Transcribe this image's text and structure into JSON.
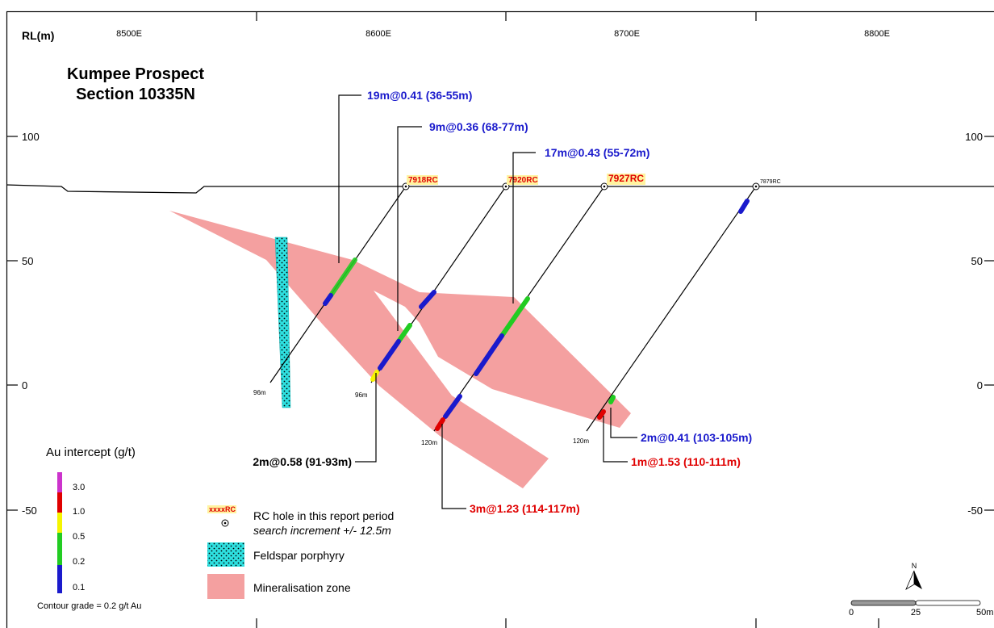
{
  "title": {
    "line1": "Kumpee Prospect",
    "line2": "Section 10335N"
  },
  "axis": {
    "y_label": "RL(m)",
    "easting_ticks": [
      "8500E",
      "8600E",
      "8700E",
      "8800E"
    ],
    "rl_ticks": [
      "100",
      "50",
      "0",
      "-50"
    ]
  },
  "holes": [
    {
      "id": "7918RC",
      "highlighted": true,
      "depth_label": "96m"
    },
    {
      "id": "7920RC",
      "highlighted": true,
      "depth_label": "96m"
    },
    {
      "id": "7927RC",
      "highlighted": true,
      "depth_label": "120m"
    },
    {
      "id": "7879RC",
      "highlighted": false,
      "depth_label": "120m"
    }
  ],
  "intercepts": [
    {
      "text": "19m@0.41 (36-55m)",
      "color": "#1a1acc"
    },
    {
      "text": "9m@0.36 (68-77m)",
      "color": "#1a1acc"
    },
    {
      "text": "17m@0.43 (55-72m)",
      "color": "#1a1acc"
    },
    {
      "text": "2m@0.58 (91-93m)",
      "color": "#000000"
    },
    {
      "text": "2m@0.41 (103-105m)",
      "color": "#1a1acc"
    },
    {
      "text": "1m@1.53 (110-111m)",
      "color": "#e00000"
    },
    {
      "text": "3m@1.23 (114-117m)",
      "color": "#e00000"
    }
  ],
  "grade_legend": {
    "title": "Au intercept (g/t)",
    "levels": [
      "3.0",
      "1.0",
      "0.5",
      "0.2",
      "0.1"
    ],
    "colors": [
      "#cc33cc",
      "#e00000",
      "#f5f500",
      "#22cc22",
      "#1a1acc"
    ],
    "note": "Contour grade = 0.2 g/t Au"
  },
  "legend": {
    "hole_sample": "xxxxRC",
    "hole_text": "RC hole in this report period",
    "hole_note": "search increment +/- 12.5m",
    "porphyry": "Feldspar porphyry",
    "mineral": "Mineralisation zone"
  },
  "scale": {
    "north": "N",
    "labels": [
      "0",
      "25",
      "50m"
    ]
  },
  "colors": {
    "mineral": "#f4a0a0",
    "porphyry": "#2ee0e0",
    "highlight": "#fff3a0",
    "hole_label": "#e00000"
  }
}
